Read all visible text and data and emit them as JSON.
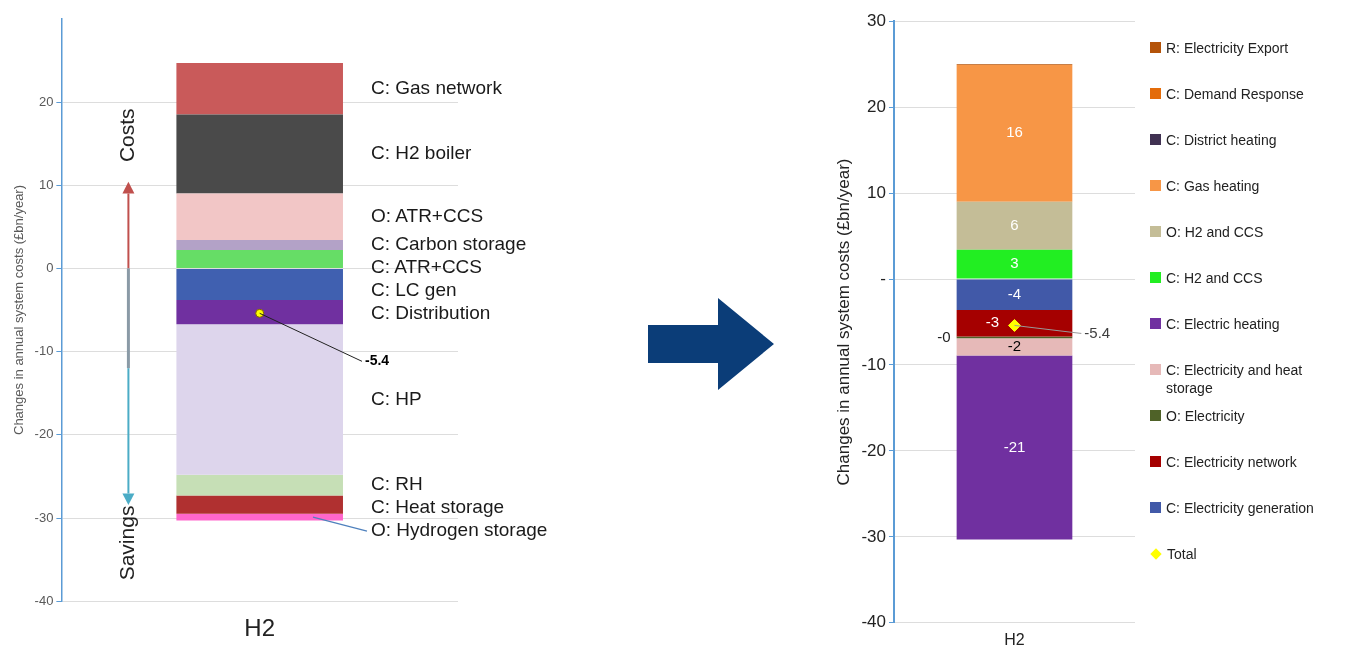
{
  "chart_data": [
    {
      "type": "bar",
      "stacked": true,
      "categories": [
        "H2"
      ],
      "ylabel": "Changes in annual system costs (£bn/year)",
      "ylim": [
        -40,
        30
      ],
      "yticks": [
        -40,
        -30,
        -20,
        -10,
        0,
        10,
        20
      ],
      "grid": "y",
      "legend": false,
      "annotations": [
        "Costs",
        "Savings",
        {
          "text": "-5.4",
          "x": "H2",
          "y": -5.4
        }
      ],
      "series": [
        {
          "name": "C: ATR+CCS",
          "color": "#66dd66",
          "values": [
            2.2
          ]
        },
        {
          "name": "C: Carbon storage",
          "color": "#b3a2c7",
          "values": [
            1.2
          ]
        },
        {
          "name": "O: ATR+CCS",
          "color": "#f2c6c6",
          "values": [
            5.6
          ]
        },
        {
          "name": "C: H2 boiler",
          "color": "#4a4a4a",
          "values": [
            9.5
          ]
        },
        {
          "name": "C: Gas network",
          "color": "#c95a5a",
          "values": [
            6.2
          ]
        },
        {
          "name": "C: LC gen",
          "color": "#4060b0",
          "values": [
            -3.8
          ]
        },
        {
          "name": "C: Distribution",
          "color": "#7030a0",
          "values": [
            -2.9
          ]
        },
        {
          "name": "C: HP",
          "color": "#ddd5ec",
          "values": [
            -18.1
          ]
        },
        {
          "name": "C: RH",
          "color": "#c6dfb6",
          "values": [
            -2.5
          ]
        },
        {
          "name": "C: Heat storage",
          "color": "#b03030",
          "values": [
            -2.2
          ]
        },
        {
          "name": "O: Hydrogen storage",
          "color": "#ff66cc",
          "values": [
            -0.8
          ]
        },
        {
          "type": "scatter",
          "color": "#ffff00",
          "marker": "circle",
          "values": [
            -5.4
          ]
        }
      ]
    },
    {
      "type": "bar",
      "stacked": true,
      "categories": [
        "H2"
      ],
      "ylabel": "Changes in annual system costs (£bn/year)",
      "ylim": [
        -40,
        30
      ],
      "yticks": [
        -40,
        -30,
        -20,
        -10,
        {
          "value": 0,
          "label": "-"
        },
        10,
        20,
        30
      ],
      "grid": "y",
      "legend": "right",
      "annotations": [
        {
          "text": "-5.4",
          "x": "H2",
          "y": -5.4
        }
      ],
      "series": [
        {
          "name": "C: Electricity generation",
          "color": "#4159a8",
          "values": [
            -3.6
          ],
          "value_labels": [
            "-4"
          ]
        },
        {
          "name": "C: Electricity network",
          "color": "#a50000",
          "values": [
            -3.1
          ],
          "value_labels": [
            "-3"
          ]
        },
        {
          "name": "O: Electricity",
          "color": "#4f6228",
          "values": [
            -0.2
          ],
          "value_labels": [
            "-0"
          ]
        },
        {
          "name": "C: Electricity and heat storage",
          "color": "#e6b9b8",
          "values": [
            -2.0
          ],
          "value_labels": [
            "-2"
          ]
        },
        {
          "name": "C: Electric heating",
          "color": "#7030a0",
          "values": [
            -21.4
          ],
          "value_labels": [
            "-21"
          ]
        },
        {
          "name": "C: H2 and CCS",
          "color": "#22ee22",
          "values": [
            3.4
          ],
          "value_labels": [
            "3"
          ]
        },
        {
          "name": "O: H2 and CCS",
          "color": "#c4bd97",
          "values": [
            5.6
          ],
          "value_labels": [
            "6"
          ]
        },
        {
          "name": "C: Gas heating",
          "color": "#f79646",
          "values": [
            15.9
          ],
          "value_labels": [
            "16"
          ]
        },
        {
          "name": "C: District heating",
          "color": "#403152",
          "values": [
            0
          ],
          "value_labels": [
            null
          ]
        },
        {
          "name": "C: Demand Response",
          "color": "#e46c0a",
          "values": [
            0
          ],
          "value_labels": [
            null
          ]
        },
        {
          "name": "R: Electricity Export",
          "color": "#b45309",
          "values": [
            0.1
          ],
          "value_labels": [
            null
          ]
        },
        {
          "type": "scatter",
          "name": "Total",
          "color": "#ffff00",
          "marker": "diamond",
          "values": [
            -5.4
          ]
        }
      ]
    }
  ]
}
